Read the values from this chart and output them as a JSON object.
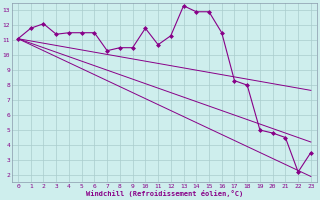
{
  "x_values": [
    0,
    1,
    2,
    3,
    4,
    5,
    6,
    7,
    8,
    9,
    10,
    11,
    12,
    13,
    14,
    15,
    16,
    17,
    18,
    19,
    20,
    21,
    22,
    23
  ],
  "main_line_y": [
    11.1,
    11.8,
    12.1,
    11.4,
    11.5,
    11.5,
    11.5,
    10.3,
    10.5,
    10.5,
    11.8,
    10.7,
    11.3,
    13.3,
    12.9,
    12.9,
    11.5,
    8.3,
    8.0,
    5.0,
    4.8,
    4.5,
    2.2,
    3.5
  ],
  "trend1_y": [
    11.1,
    10.95,
    10.8,
    10.65,
    10.5,
    10.35,
    10.2,
    10.05,
    9.9,
    9.75,
    9.6,
    9.45,
    9.3,
    9.15,
    9.0,
    8.85,
    8.7,
    8.55,
    8.4,
    8.25,
    8.1,
    7.95,
    7.8,
    7.65
  ],
  "trend2_y": [
    11.1,
    10.8,
    10.5,
    10.2,
    9.9,
    9.6,
    9.3,
    9.0,
    8.7,
    8.4,
    8.1,
    7.8,
    7.5,
    7.2,
    6.9,
    6.6,
    6.3,
    6.0,
    5.7,
    5.4,
    5.1,
    4.8,
    4.5,
    4.2
  ],
  "trend3_y": [
    11.1,
    10.7,
    10.3,
    9.9,
    9.5,
    9.1,
    8.7,
    8.3,
    7.9,
    7.5,
    7.1,
    6.7,
    6.3,
    5.9,
    5.5,
    5.1,
    4.7,
    4.3,
    3.9,
    3.5,
    3.1,
    2.7,
    2.3,
    1.9
  ],
  "color": "#880088",
  "bg_color": "#ceeeed",
  "grid_color": "#aacccc",
  "xlabel": "Windchill (Refroidissement éolien,°C)",
  "ylim": [
    1.5,
    13.5
  ],
  "xlim": [
    -0.5,
    23.5
  ],
  "yticks": [
    2,
    3,
    4,
    5,
    6,
    7,
    8,
    9,
    10,
    11,
    12,
    13
  ],
  "xticks": [
    0,
    1,
    2,
    3,
    4,
    5,
    6,
    7,
    8,
    9,
    10,
    11,
    12,
    13,
    14,
    15,
    16,
    17,
    18,
    19,
    20,
    21,
    22,
    23
  ]
}
